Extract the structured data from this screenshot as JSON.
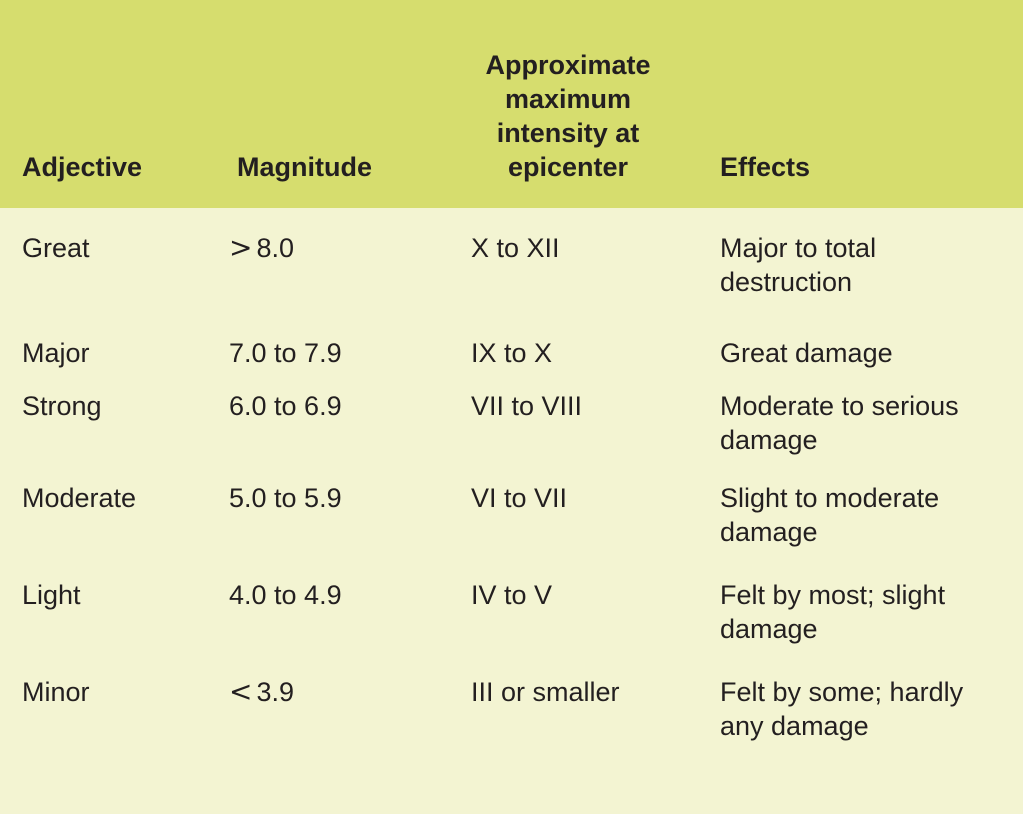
{
  "columns": {
    "adjective": "Adjective",
    "magnitude": "Magnitude",
    "intensity": "Approximate maximum intensity at epicenter",
    "effects": "Effects"
  },
  "rows": [
    {
      "adjective": "Great",
      "magnitude_symbol": ">",
      "magnitude_value": "8.0",
      "intensity": "X to XII",
      "effects": "Major to total destruction"
    },
    {
      "adjective": "Major",
      "magnitude_symbol": "",
      "magnitude_value": "7.0 to 7.9",
      "intensity": "IX to X",
      "effects": "Great damage"
    },
    {
      "adjective": "Strong",
      "magnitude_symbol": "",
      "magnitude_value": "6.0 to 6.9",
      "intensity": "VII to VIII",
      "effects": "Moderate to serious damage"
    },
    {
      "adjective": "Moderate",
      "magnitude_symbol": "",
      "magnitude_value": "5.0 to 5.9",
      "intensity": "VI to VII",
      "effects": "Slight to moderate damage"
    },
    {
      "adjective": "Light",
      "magnitude_symbol": "",
      "magnitude_value": "4.0 to 4.9",
      "intensity": "IV to V",
      "effects": "Felt by most; slight damage"
    },
    {
      "adjective": "Minor",
      "magnitude_symbol": "<",
      "magnitude_value": "3.9",
      "intensity": "III or smaller",
      "effects": "Felt by some; hardly any damage"
    }
  ],
  "colors": {
    "header_bg": "#d6dd6e",
    "body_bg": "#f3f4d2",
    "text": "#231f20"
  }
}
